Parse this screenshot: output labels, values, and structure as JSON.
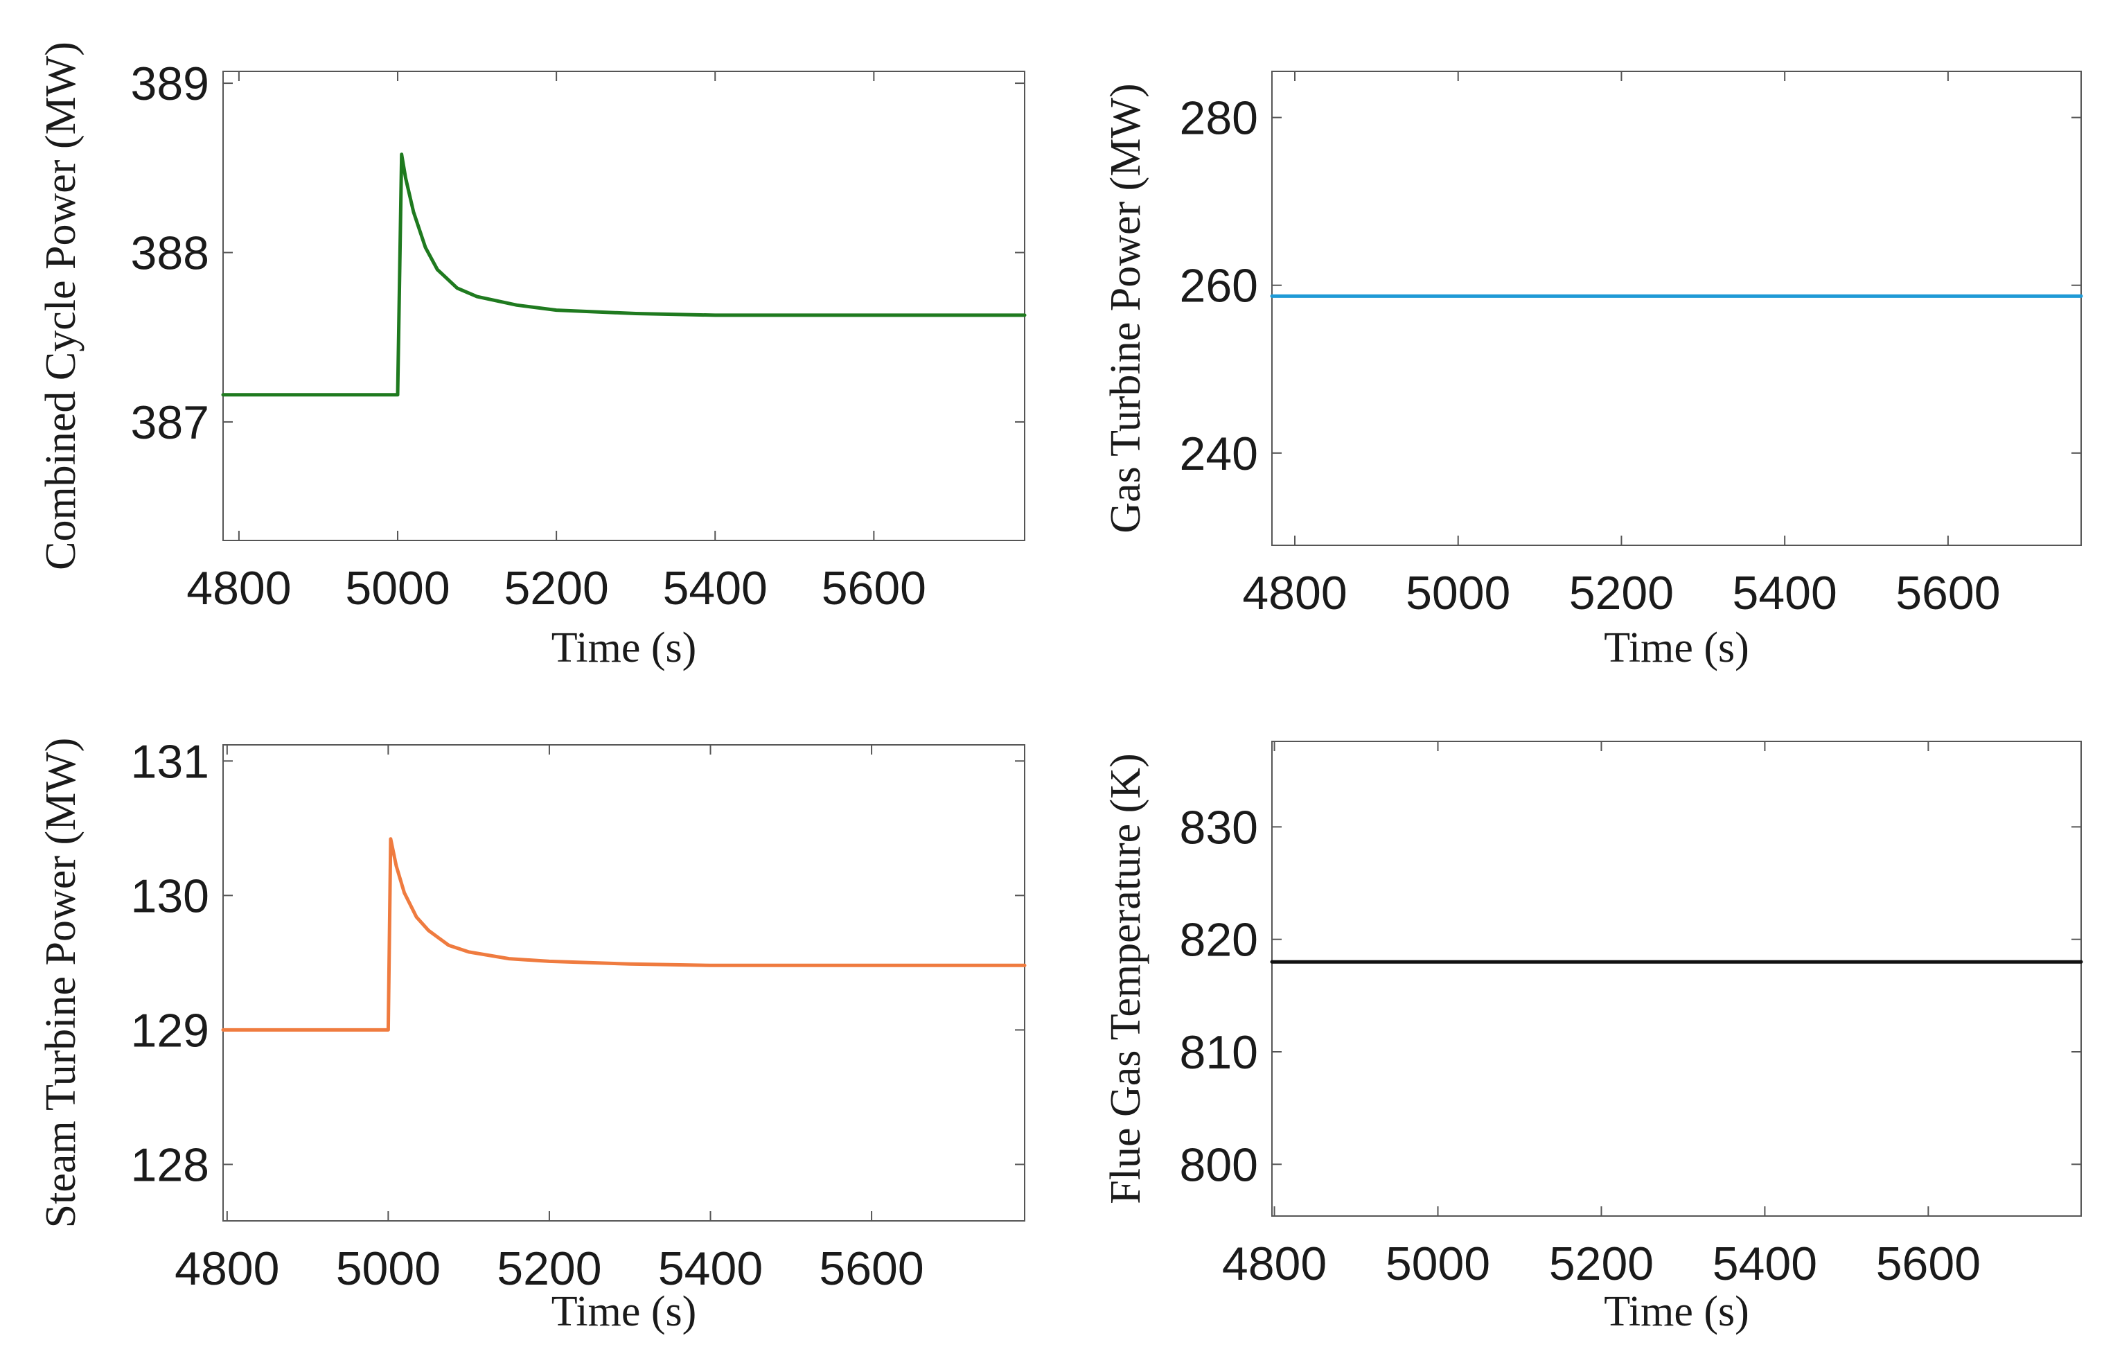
{
  "chart_data": [
    {
      "type": "line",
      "position": "top-left",
      "title": "",
      "xlabel": "Time (s)",
      "ylabel": "Combined Cycle Power (MW)",
      "xlim": [
        4780,
        5790
      ],
      "ylim": [
        386.3,
        389.07
      ],
      "xticks": [
        4800,
        5000,
        5200,
        5400,
        5600
      ],
      "yticks": [
        387,
        388,
        389
      ],
      "grid": false,
      "series": [
        {
          "name": "Combined Cycle Power",
          "color": "#1f7a1f",
          "x": [
            4780,
            4999,
            5000,
            5005,
            5010,
            5020,
            5035,
            5050,
            5075,
            5100,
            5150,
            5200,
            5300,
            5400,
            5500,
            5600,
            5790
          ],
          "y": [
            387.16,
            387.16,
            387.16,
            388.58,
            388.44,
            388.24,
            388.03,
            387.9,
            387.79,
            387.74,
            387.69,
            387.66,
            387.64,
            387.63,
            387.63,
            387.63,
            387.63
          ]
        }
      ]
    },
    {
      "type": "line",
      "position": "top-right",
      "title": "",
      "xlabel": "Time (s)",
      "ylabel": "Gas Turbine Power (MW)",
      "xlim": [
        4772,
        5763
      ],
      "ylim": [
        229,
        285.5
      ],
      "xticks": [
        4800,
        5000,
        5200,
        5400,
        5600
      ],
      "yticks": [
        240,
        260,
        280
      ],
      "grid": false,
      "series": [
        {
          "name": "Gas Turbine Power",
          "color": "#1e9ad6",
          "x": [
            4772,
            5763
          ],
          "y": [
            258.7,
            258.7
          ]
        }
      ]
    },
    {
      "type": "line",
      "position": "bottom-left",
      "title": "",
      "xlabel": "Time (s)",
      "ylabel": "Steam Turbine Power (MW)",
      "xlim": [
        4795,
        5790
      ],
      "ylim": [
        127.58,
        131.12
      ],
      "xticks": [
        4800,
        5000,
        5200,
        5400,
        5600
      ],
      "yticks": [
        128,
        129,
        130,
        131
      ],
      "grid": false,
      "series": [
        {
          "name": "Steam Turbine Power",
          "color": "#ef7b3f",
          "x": [
            4795,
            4998,
            5000,
            5003,
            5010,
            5020,
            5035,
            5050,
            5075,
            5100,
            5150,
            5200,
            5300,
            5400,
            5500,
            5600,
            5790
          ],
          "y": [
            129.0,
            129.0,
            129.0,
            130.42,
            130.22,
            130.02,
            129.84,
            129.74,
            129.63,
            129.58,
            129.53,
            129.51,
            129.49,
            129.48,
            129.48,
            129.48,
            129.48
          ]
        }
      ]
    },
    {
      "type": "line",
      "position": "bottom-right",
      "title": "",
      "xlabel": "Time (s)",
      "ylabel": "Flue Gas Temperature (K)",
      "xlim": [
        4797,
        5787
      ],
      "ylim": [
        795.4,
        837.6
      ],
      "xticks": [
        4800,
        5000,
        5200,
        5400,
        5600
      ],
      "yticks": [
        800,
        810,
        820,
        830
      ],
      "grid": false,
      "series": [
        {
          "name": "Flue Gas Temperature",
          "color": "#111111",
          "x": [
            4797,
            5787
          ],
          "y": [
            818.0,
            818.0
          ]
        }
      ]
    }
  ]
}
